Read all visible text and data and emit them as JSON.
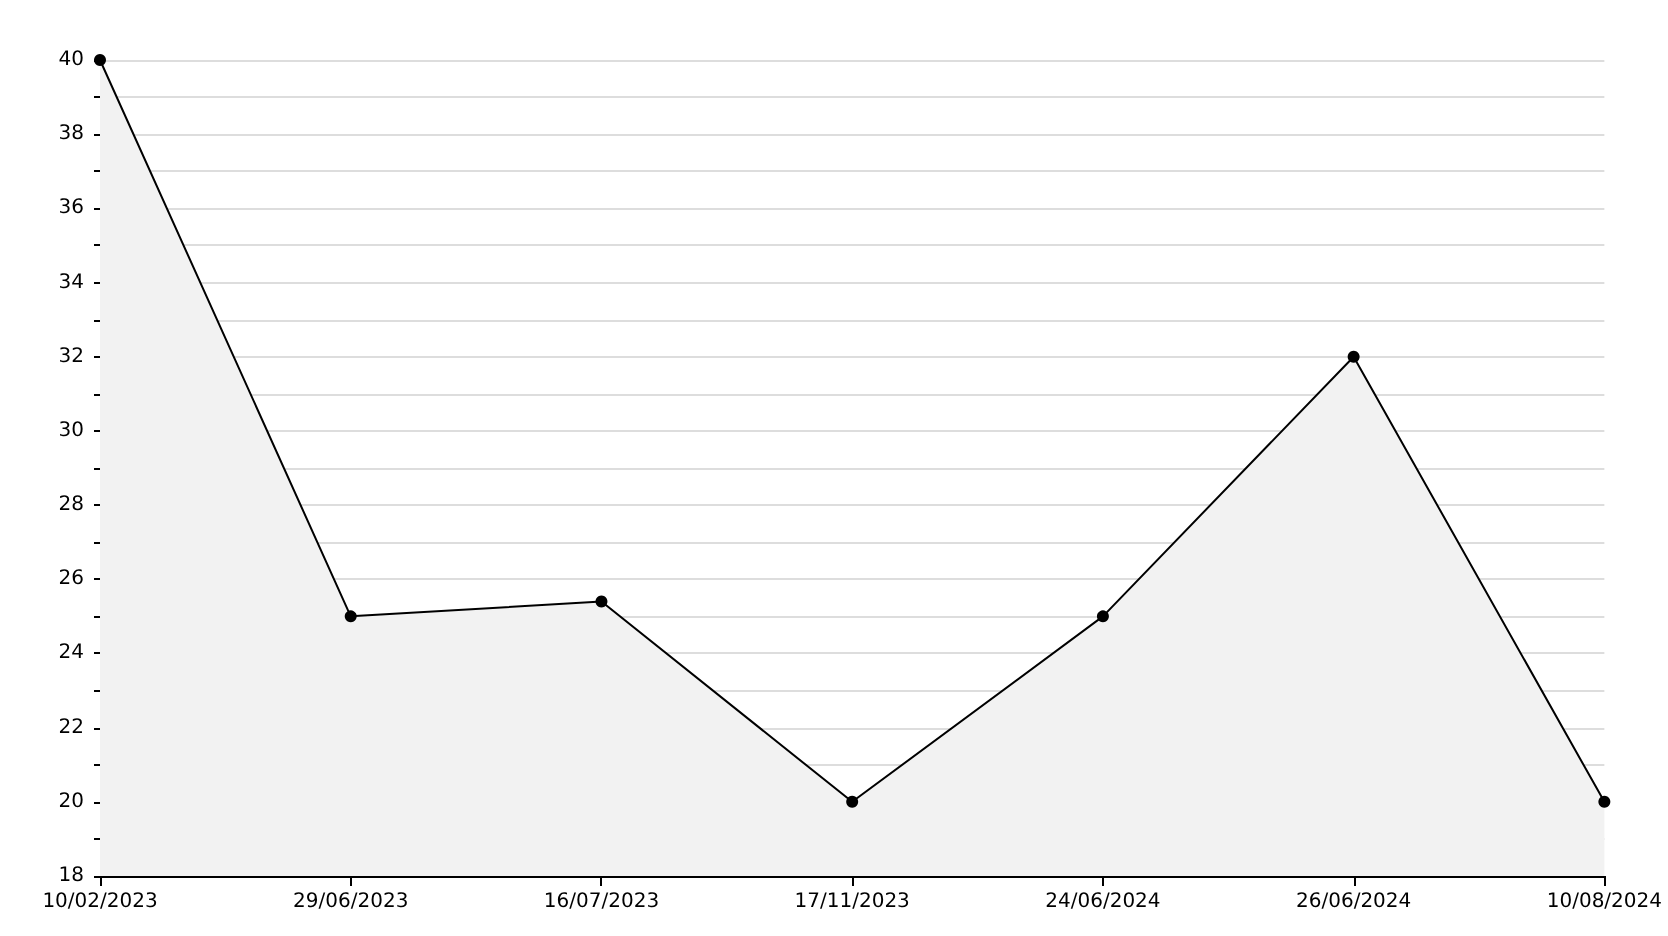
{
  "chart_data": {
    "type": "area",
    "categories": [
      "10/02/2023",
      "29/06/2023",
      "16/07/2023",
      "17/11/2023",
      "24/06/2024",
      "26/06/2024",
      "10/08/2024"
    ],
    "series": [
      {
        "color": "#000000",
        "values": [
          40,
          25,
          25.4,
          20,
          25,
          32,
          20
        ]
      }
    ],
    "ylim": [
      18,
      40
    ],
    "yticks": [
      18,
      20,
      22,
      24,
      26,
      28,
      30,
      32,
      34,
      36,
      38,
      40
    ],
    "grid": "y",
    "marker": "circle",
    "line_style": "solid"
  }
}
